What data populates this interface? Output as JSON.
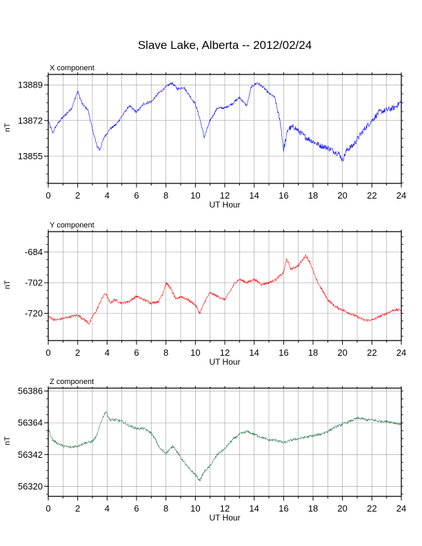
{
  "title": "Slave Lake, Alberta -- 2012/02/24",
  "chart_data": [
    {
      "type": "line",
      "title": "X component",
      "xlabel": "UT Hour",
      "ylabel": "nT",
      "xlim": [
        0,
        24
      ],
      "ylim": [
        13842,
        13894
      ],
      "xticks": [
        0,
        2,
        4,
        6,
        8,
        10,
        12,
        14,
        16,
        18,
        20,
        22,
        24
      ],
      "yticks": [
        13855,
        13872,
        13889
      ],
      "grid": true,
      "color": "#0000ff",
      "series": [
        {
          "x": [
            0,
            0.3,
            0.5,
            0.8,
            1.2,
            1.6,
            2.0,
            2.3,
            2.7,
            3.0,
            3.3,
            3.5,
            3.8,
            4.2,
            4.6,
            5.0,
            5.5,
            6.0,
            6.5,
            7.0,
            7.5,
            8.0,
            8.4,
            8.8,
            9.2,
            9.6,
            10.0,
            10.3,
            10.6,
            11.0,
            11.5,
            12.0,
            12.5,
            13.0,
            13.5,
            13.8,
            14.2,
            14.6,
            15.0,
            15.4,
            15.8,
            16.0,
            16.3,
            16.7,
            17.0,
            17.5,
            18.0,
            18.5,
            19.0,
            19.5,
            19.8,
            20.0,
            20.3,
            20.7,
            21.0,
            21.5,
            22.0,
            22.5,
            23.0,
            23.5,
            24.0
          ],
          "values": [
            13872,
            13866,
            13869,
            13872,
            13875,
            13878,
            13886,
            13880,
            13877,
            13868,
            13860,
            13858,
            13864,
            13868,
            13870,
            13874,
            13879,
            13876,
            13880,
            13881,
            13885,
            13888,
            13890,
            13887,
            13888,
            13884,
            13880,
            13873,
            13864,
            13872,
            13878,
            13878,
            13880,
            13883,
            13879,
            13888,
            13890,
            13888,
            13885,
            13883,
            13870,
            13858,
            13868,
            13869,
            13867,
            13864,
            13862,
            13860,
            13859,
            13857,
            13856,
            13853,
            13858,
            13860,
            13863,
            13868,
            13872,
            13876,
            13877,
            13878,
            13881
          ]
        }
      ]
    },
    {
      "type": "line",
      "title": "Y component",
      "xlabel": "UT Hour",
      "ylabel": "nT",
      "xlim": [
        0,
        24
      ],
      "ylim": [
        -736,
        -672
      ],
      "xticks": [
        0,
        2,
        4,
        6,
        8,
        10,
        12,
        14,
        16,
        18,
        20,
        22,
        24
      ],
      "yticks": [
        -684,
        -702,
        -720
      ],
      "grid": true,
      "color": "#ff0000",
      "series": [
        {
          "x": [
            0,
            0.5,
            1.0,
            1.5,
            2.0,
            2.5,
            2.8,
            3.0,
            3.3,
            3.6,
            3.9,
            4.2,
            4.5,
            5.0,
            5.5,
            6.0,
            6.5,
            7.0,
            7.5,
            7.8,
            8.0,
            8.3,
            8.7,
            9.0,
            9.5,
            10.0,
            10.3,
            10.7,
            11.0,
            11.5,
            12.0,
            12.3,
            12.7,
            13.0,
            13.5,
            14.0,
            14.5,
            15.0,
            15.5,
            16.0,
            16.2,
            16.5,
            17.0,
            17.5,
            17.8,
            18.2,
            18.6,
            19.0,
            19.5,
            20.0,
            20.5,
            21.0,
            21.5,
            22.0,
            22.5,
            23.0,
            23.5,
            24.0
          ],
          "values": [
            -722,
            -724,
            -723,
            -722,
            -721,
            -724,
            -726,
            -722,
            -718,
            -712,
            -708,
            -714,
            -712,
            -714,
            -713,
            -710,
            -712,
            -714,
            -713,
            -708,
            -702,
            -705,
            -712,
            -710,
            -712,
            -715,
            -720,
            -712,
            -708,
            -710,
            -712,
            -708,
            -702,
            -700,
            -702,
            -700,
            -703,
            -702,
            -700,
            -696,
            -688,
            -694,
            -692,
            -686,
            -690,
            -700,
            -706,
            -712,
            -716,
            -718,
            -720,
            -722,
            -724,
            -724,
            -722,
            -720,
            -718,
            -718
          ]
        }
      ]
    },
    {
      "type": "line",
      "title": "Z component",
      "xlabel": "UT Hour",
      "ylabel": "nT",
      "xlim": [
        0,
        24
      ],
      "ylim": [
        56313,
        56388
      ],
      "xticks": [
        0,
        2,
        4,
        6,
        8,
        10,
        12,
        14,
        16,
        18,
        20,
        22,
        24
      ],
      "yticks": [
        56320,
        56342,
        56364,
        56386
      ],
      "grid": true,
      "color": "#2e7d4f",
      "series": [
        {
          "x": [
            0,
            0.3,
            0.6,
            1.0,
            1.5,
            2.0,
            2.5,
            3.0,
            3.3,
            3.6,
            3.9,
            4.2,
            4.6,
            5.0,
            5.5,
            6.0,
            6.5,
            7.0,
            7.3,
            7.6,
            8.0,
            8.5,
            9.0,
            9.5,
            10.0,
            10.3,
            10.6,
            11.0,
            11.5,
            12.0,
            12.5,
            13.0,
            13.5,
            14.0,
            14.5,
            15.0,
            15.5,
            16.0,
            16.5,
            17.0,
            17.5,
            18.0,
            18.5,
            19.0,
            19.5,
            20.0,
            20.5,
            21.0,
            21.3,
            21.6,
            22.0,
            22.5,
            23.0,
            23.5,
            24.0
          ],
          "values": [
            56360,
            56352,
            56350,
            56348,
            56347,
            56348,
            56350,
            56351,
            56355,
            56365,
            56372,
            56366,
            56366,
            56365,
            56362,
            56360,
            56360,
            56357,
            56352,
            56346,
            56343,
            56348,
            56340,
            56333,
            56328,
            56324,
            56330,
            56334,
            56342,
            56346,
            56352,
            56356,
            56358,
            56356,
            56354,
            56352,
            56352,
            56350,
            56352,
            56353,
            56354,
            56355,
            56356,
            56358,
            56361,
            56363,
            56365,
            56367,
            56367,
            56366,
            56366,
            56365,
            56365,
            56364,
            56363
          ]
        }
      ]
    }
  ]
}
